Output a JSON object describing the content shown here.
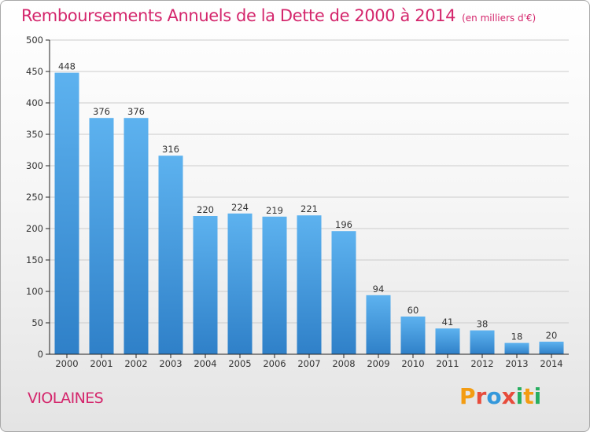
{
  "header": {
    "title": "Remboursements Annuels de la Dette de 2000 à 2014",
    "unit": "(en milliers d'€)"
  },
  "footer": {
    "commune": "VIOLAINES",
    "logo_text": "Proxiti",
    "logo_letters": [
      "P",
      "r",
      "o",
      "x",
      "i",
      "t",
      "i"
    ]
  },
  "colors": {
    "title": "#d4266c",
    "bar_top": "#5db2ef",
    "bar_bottom": "#2f80c8",
    "axis": "#222222",
    "grid": "#cccccc"
  },
  "chart_data": {
    "type": "bar",
    "title": "Remboursements Annuels de la Dette de 2000 à 2014",
    "unit": "(en milliers d'€)",
    "categories": [
      "2000",
      "2001",
      "2002",
      "2003",
      "2004",
      "2005",
      "2006",
      "2007",
      "2008",
      "2009",
      "2010",
      "2011",
      "2012",
      "2013",
      "2014"
    ],
    "values": [
      448,
      376,
      376,
      316,
      220,
      224,
      219,
      221,
      196,
      94,
      60,
      41,
      38,
      18,
      20
    ],
    "ylim": [
      0,
      500
    ],
    "yticks": [
      0,
      50,
      100,
      150,
      200,
      250,
      300,
      350,
      400,
      450,
      500
    ],
    "grid": true,
    "legend": "none"
  }
}
